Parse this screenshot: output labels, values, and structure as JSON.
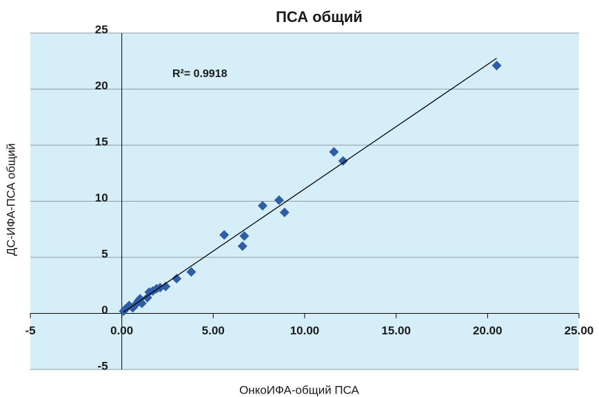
{
  "chart_data": {
    "type": "scatter",
    "title": "ПСА общий",
    "x_label": "ОнкоИФА-общий ПСА",
    "y_label": "ДС-ИФА-ПСА общий",
    "annotation": "R²= 0.9918",
    "color": "#2e5ea6",
    "grid": true,
    "xlim": [
      -5,
      25
    ],
    "ylim": [
      -5,
      25
    ],
    "xticks": [
      {
        "value": -5,
        "label": "-5"
      },
      {
        "value": 0,
        "label": "0.00"
      },
      {
        "value": 5,
        "label": "5.00"
      },
      {
        "value": 10,
        "label": "10.00"
      },
      {
        "value": 15,
        "label": "15.00"
      },
      {
        "value": 20,
        "label": "20.00"
      },
      {
        "value": 25,
        "label": "25.00"
      }
    ],
    "yticks": [
      -5,
      0,
      5,
      10,
      15,
      20,
      25
    ],
    "x": [
      20.5,
      11.6,
      12.1,
      8.6,
      7.7,
      8.9,
      5.6,
      6.7,
      6.6,
      3.8,
      3.0,
      2.4,
      2.1,
      1.9,
      1.7,
      1.5,
      1.4,
      1.0,
      0.9,
      1.1,
      0.7,
      0.6,
      0.4,
      0.2,
      0.1
    ],
    "values": [
      22.1,
      14.4,
      13.6,
      10.1,
      9.6,
      9.0,
      7.0,
      6.9,
      6.0,
      3.7,
      3.1,
      2.4,
      2.3,
      2.2,
      2.0,
      1.9,
      1.4,
      1.3,
      1.1,
      0.9,
      0.7,
      0.5,
      0.7,
      0.4,
      0.2
    ]
  }
}
